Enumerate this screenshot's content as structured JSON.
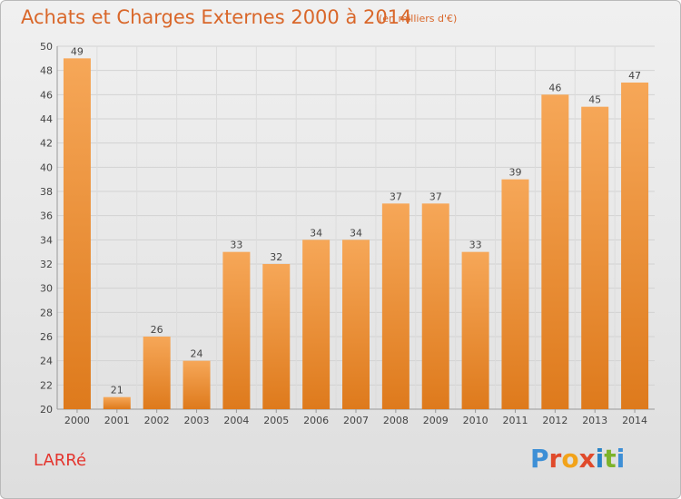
{
  "header": {
    "title": "Achats et Charges Externes 2000 à 2014",
    "unit_note": "(en milliers d'€)"
  },
  "footer": {
    "commune": "LARRé",
    "logo_text": "Proxiti"
  },
  "colors": {
    "title": "#d9672a",
    "commune": "#e4352e",
    "bar_top": "#f6a758",
    "bar_bottom": "#de7a1c",
    "logo_letters": [
      "#3d8fd6",
      "#e04a2b",
      "#f2a31a",
      "#e04a2b",
      "#2a84c6",
      "#7cb32a",
      "#3d8fd6"
    ]
  },
  "chart_data": {
    "type": "bar",
    "title": "Achats et Charges Externes 2000 à 2014",
    "subtitle": "(en milliers d'€)",
    "categories": [
      "2000",
      "2001",
      "2002",
      "2003",
      "2004",
      "2005",
      "2006",
      "2007",
      "2008",
      "2009",
      "2010",
      "2011",
      "2012",
      "2013",
      "2014"
    ],
    "values": [
      49,
      21,
      26,
      24,
      33,
      32,
      34,
      34,
      37,
      37,
      33,
      39,
      46,
      45,
      47
    ],
    "ylim": [
      20,
      50
    ],
    "yticks": [
      20,
      22,
      24,
      26,
      28,
      30,
      32,
      34,
      36,
      38,
      40,
      42,
      44,
      46,
      48,
      50
    ],
    "grid": true,
    "legend": "none",
    "data_labels": true
  }
}
